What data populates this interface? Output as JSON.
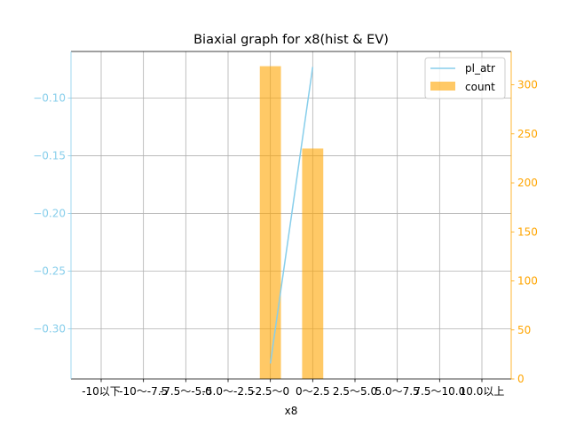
{
  "chart_data": {
    "type": "bar+line",
    "title": "Biaxial graph for x8(hist & EV)",
    "xlabel": "x8",
    "categories": [
      "-10以下",
      "-10～-7.5",
      "-7.5～-5.0",
      "-5.0～-2.5",
      "-2.5～0",
      "0～2.5",
      "2.5～5.0",
      "5.0～7.5",
      "7.5～10.0",
      "10.0以上"
    ],
    "series": [
      {
        "name": "pl_atr",
        "type": "line",
        "axis": "left",
        "color": "#87ceeb",
        "values": [
          null,
          null,
          null,
          null,
          -0.33,
          -0.073,
          null,
          null,
          null,
          null
        ]
      },
      {
        "name": "count",
        "type": "bar",
        "axis": "right",
        "color": "#ffa500",
        "values": [
          0,
          0,
          0,
          0,
          319,
          235,
          0,
          0,
          0,
          0
        ]
      }
    ],
    "left_axis": {
      "ylim": [
        -0.3435,
        -0.0595
      ],
      "ticks": [
        -0.1,
        -0.15,
        -0.2,
        -0.25,
        -0.3
      ],
      "tick_labels": [
        "−0.10",
        "−0.15",
        "−0.20",
        "−0.25",
        "−0.30"
      ],
      "color": "#87ceeb"
    },
    "right_axis": {
      "ylim": [
        0,
        334
      ],
      "ticks": [
        0,
        50,
        100,
        150,
        200,
        250,
        300
      ],
      "tick_labels": [
        "0",
        "50",
        "100",
        "150",
        "200",
        "250",
        "300"
      ],
      "color": "#ffa500"
    },
    "grid": true,
    "legend_position": "top-right"
  }
}
